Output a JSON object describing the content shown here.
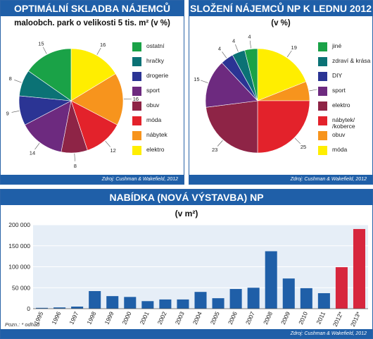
{
  "chart_data": [
    {
      "type": "pie",
      "title": "OPTIMÁLNÍ SKLADBA NÁJEMCŮ",
      "subtitle": "maloobch. park o velikosti 5 tis. m² (v %)",
      "source": "Zdroj: Cushman & Wakefield, 2012",
      "legend_position": "right",
      "slices": [
        {
          "label": "elektro",
          "value": 16,
          "color": "#ffee00"
        },
        {
          "label": "nábytek",
          "value": 16,
          "color": "#f7941d"
        },
        {
          "label": "móda",
          "value": 12,
          "color": "#e3222b"
        },
        {
          "label": "obuv",
          "value": 8,
          "color": "#8e2446"
        },
        {
          "label": "sport",
          "value": 14,
          "color": "#6d2a7f"
        },
        {
          "label": "drogerie",
          "value": 9,
          "color": "#2b3494"
        },
        {
          "label": "hračky",
          "value": 8,
          "color": "#0b7275"
        },
        {
          "label": "ostatní",
          "value": 15,
          "color": "#1aa247"
        }
      ],
      "legend_order": [
        "ostatní",
        "hračky",
        "drogerie",
        "sport",
        "obuv",
        "móda",
        "nábytek",
        "elektro"
      ]
    },
    {
      "type": "pie",
      "title": "SLOŽENÍ NÁJEMCŮ NP K LEDNU 2012",
      "subtitle": "(v %)",
      "source": "Zdroj: Cushman & Wakefield, 2012",
      "legend_position": "right",
      "slices": [
        {
          "label": "móda",
          "value": 19,
          "color": "#ffee00"
        },
        {
          "label": "obuv",
          "value": 6,
          "color": "#f7941d"
        },
        {
          "label": "nábytek/ /koberce",
          "value": 25,
          "color": "#e3222b"
        },
        {
          "label": "elektro",
          "value": 23,
          "color": "#8e2446"
        },
        {
          "label": "sport",
          "value": 15,
          "color": "#6d2a7f"
        },
        {
          "label": "DIY",
          "value": 4,
          "color": "#2b3494"
        },
        {
          "label": "zdraví & krása",
          "value": 4,
          "color": "#0b7275"
        },
        {
          "label": "jiné",
          "value": 4,
          "color": "#1aa247"
        }
      ],
      "legend_order": [
        "jiné",
        "zdraví & krása",
        "DIY",
        "sport",
        "elektro",
        "nábytek/ /koberce",
        "obuv",
        "móda"
      ]
    },
    {
      "type": "bar",
      "title": "NABÍDKA (NOVÁ VÝSTAVBA) NP",
      "subtitle": "(v m²)",
      "note": "Pozn.: * odhad",
      "source": "Zdroj: Cushman & Wakefield, 2012",
      "categories": [
        "1995",
        "1996",
        "1997",
        "1998",
        "1999",
        "2000",
        "2001",
        "2002",
        "2003",
        "2004",
        "2005",
        "2006",
        "2007",
        "2008",
        "2009",
        "2010",
        "2011",
        "2012*",
        "2013*"
      ],
      "values": [
        2000,
        3000,
        5000,
        42000,
        30000,
        28000,
        18000,
        22000,
        22000,
        40000,
        25000,
        47000,
        50000,
        137000,
        72000,
        49000,
        37000,
        99000,
        190000
      ],
      "colors": [
        "#1f5fa8",
        "#1f5fa8",
        "#1f5fa8",
        "#1f5fa8",
        "#1f5fa8",
        "#1f5fa8",
        "#1f5fa8",
        "#1f5fa8",
        "#1f5fa8",
        "#1f5fa8",
        "#1f5fa8",
        "#1f5fa8",
        "#1f5fa8",
        "#1f5fa8",
        "#1f5fa8",
        "#1f5fa8",
        "#1f5fa8",
        "#d7263d",
        "#d7263d"
      ],
      "ylim": [
        0,
        200000
      ],
      "yticks": [
        "0",
        "50 000",
        "100 000",
        "150 000",
        "200 000"
      ],
      "ytick_values": [
        0,
        50000,
        100000,
        150000,
        200000
      ],
      "grid": true
    }
  ]
}
